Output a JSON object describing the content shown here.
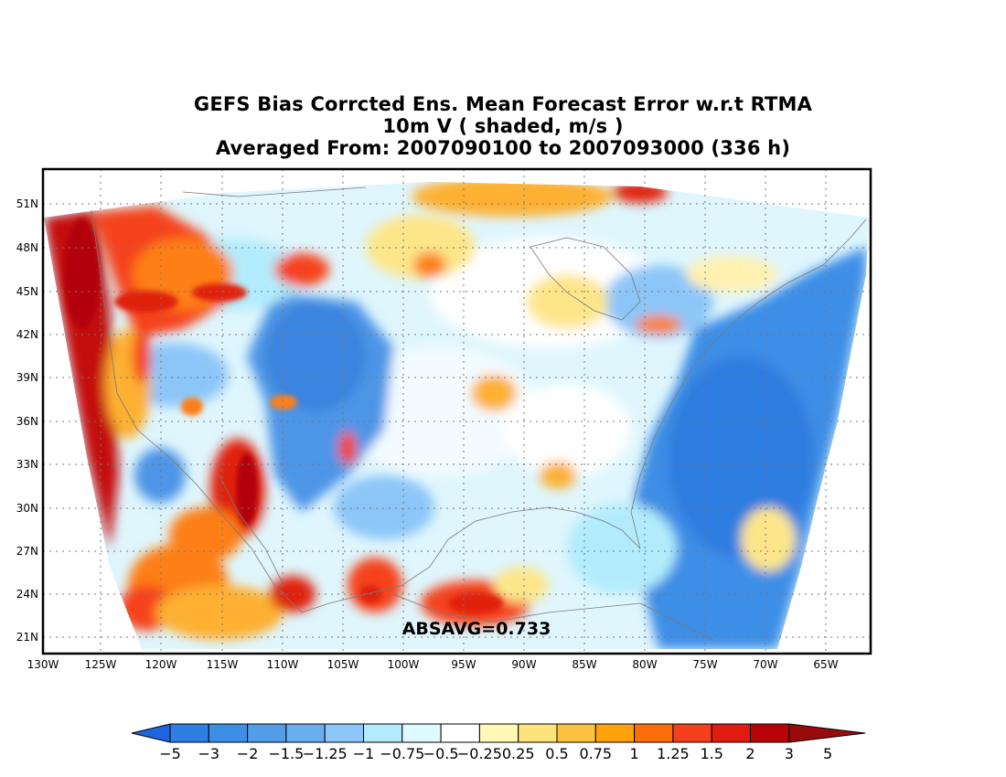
{
  "title": {
    "line1": "GEFS Bias Corrcted Ens. Mean Forecast Error w.r.t RTMA",
    "line2": "10m V ( shaded, m/s )",
    "line3": "Averaged From: 2007090100 to 2007093000 (336 h)"
  },
  "map": {
    "lon_labels": [
      "130W",
      "125W",
      "120W",
      "115W",
      "110W",
      "105W",
      "100W",
      "95W",
      "90W",
      "85W",
      "80W",
      "75W",
      "70W",
      "65W"
    ],
    "lat_labels": [
      "51N",
      "48N",
      "45N",
      "42N",
      "39N",
      "36N",
      "33N",
      "30N",
      "27N",
      "24N",
      "21N"
    ],
    "absavg": "ABSAVG=0.733",
    "colors": {
      "land_neutral": "#ffffff",
      "strong_red": "#b3000b",
      "red": "#e0200f",
      "orange_red": "#f5421a",
      "orange": "#fd7f14",
      "amber": "#fdb030",
      "light_yellow": "#fde68a",
      "pale_cyan": "#dcfafe",
      "light_blue": "#97d2fb",
      "mid_blue": "#4d9be8",
      "blue": "#2f7de0"
    }
  },
  "colorbar": {
    "labels": [
      "−5",
      "−3",
      "−2",
      "−1.5",
      "−1.25",
      "−1",
      "−0.75",
      "−0.5",
      "−0.25",
      "0.25",
      "0.5",
      "0.75",
      "1",
      "1.25",
      "1.5",
      "2",
      "3",
      "5"
    ],
    "colors": [
      "#1f65e0",
      "#2f7ee3",
      "#3d8ee6",
      "#529de8",
      "#6aaef0",
      "#8cc6f8",
      "#b2ecfc",
      "#defafe",
      "#ffffff",
      "#fff9b5",
      "#fde47a",
      "#fdc23f",
      "#fda20d",
      "#fd6e08",
      "#f5401d",
      "#e01c12",
      "#b80409",
      "#9a0c0c"
    ]
  }
}
